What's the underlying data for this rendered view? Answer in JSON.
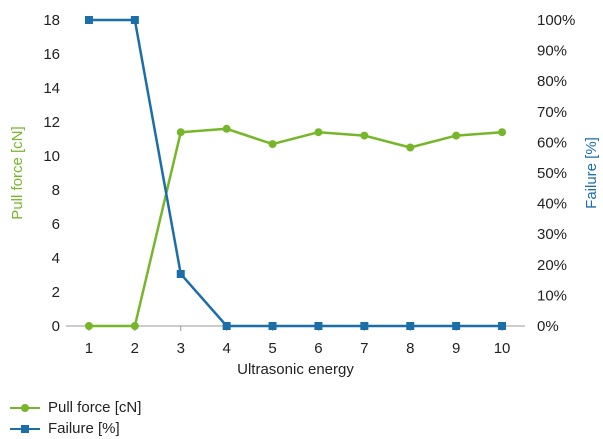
{
  "chart_data": {
    "type": "line",
    "x": [
      1,
      2,
      3,
      4,
      5,
      6,
      7,
      8,
      9,
      10
    ],
    "xlabel": "Ultrasonic energy",
    "series": [
      {
        "name": "Pull force [cN]",
        "axis": "left",
        "color": "#76b72a",
        "marker": "circle",
        "values": [
          0,
          0,
          11.4,
          11.6,
          10.7,
          11.4,
          11.2,
          10.5,
          11.2,
          11.4
        ]
      },
      {
        "name": "Failure [%]",
        "axis": "right",
        "color": "#1b6ea8",
        "marker": "square",
        "values": [
          100,
          100,
          17,
          0,
          0,
          0,
          0,
          0,
          0,
          0
        ]
      }
    ],
    "y_left": {
      "label": "Pull force [cN]",
      "lim": [
        0,
        18
      ],
      "ticks": [
        "0",
        "2",
        "4",
        "6",
        "8",
        "10",
        "12",
        "14",
        "16",
        "18"
      ]
    },
    "y_right": {
      "label": "Failure [%]",
      "lim": [
        0,
        100
      ],
      "ticks": [
        "0%",
        "10%",
        "20%",
        "30%",
        "40%",
        "50%",
        "60%",
        "70%",
        "80%",
        "90%",
        "100%"
      ]
    },
    "x_ticks": [
      "1",
      "2",
      "3",
      "4",
      "5",
      "6",
      "7",
      "8",
      "9",
      "10"
    ],
    "grid": false,
    "legend": "bottom-left"
  },
  "legend": {
    "items": [
      {
        "label": "Pull force [cN]",
        "color": "#76b72a",
        "icon": "circle-marker-icon"
      },
      {
        "label": "Failure [%]",
        "color": "#1b6ea8",
        "icon": "square-marker-icon"
      }
    ]
  }
}
